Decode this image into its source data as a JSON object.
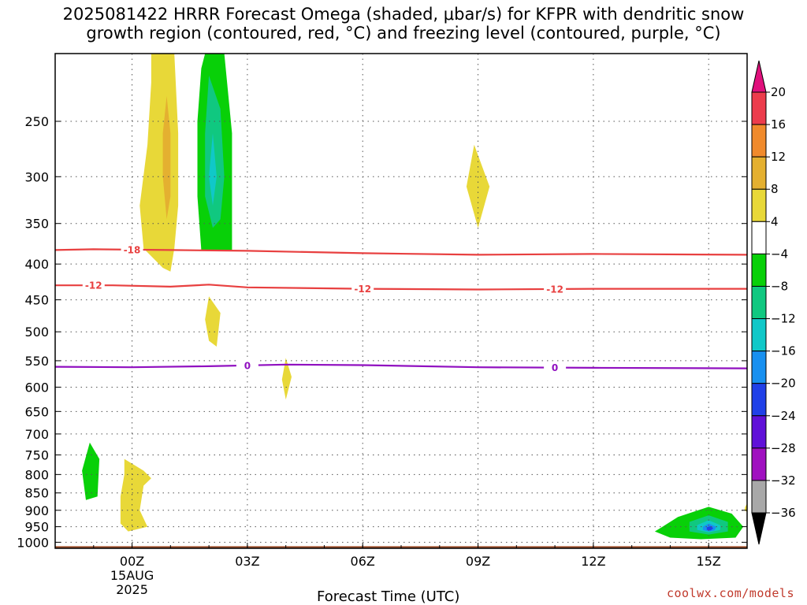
{
  "title_line1": "2025081422 HRRR Forecast Omega (shaded, μbar/s) for KFPR with dendritic snow",
  "title_line2": "growth region (contoured, red, °C) and freezing level (contoured, purple, °C)",
  "xlabel": "Forecast Time (UTC)",
  "credit": "coolwx.com/models",
  "chart_data": {
    "type": "heatmap",
    "title": "2025081422 HRRR Forecast Omega (shaded, μbar/s) for KFPR with dendritic snow growth region (contoured, red, °C) and freezing level (contoured, purple, °C)",
    "xlabel": "Forecast Time (UTC)",
    "ylabel": "",
    "xlim_hours": [
      -2,
      16
    ],
    "ylim_hpa": [
      1020,
      200
    ],
    "y_scale": "log",
    "grid": true,
    "x_ticks": [
      {
        "hour": 0,
        "label": "00Z",
        "sub1": "15AUG",
        "sub2": "2025"
      },
      {
        "hour": 3,
        "label": "03Z"
      },
      {
        "hour": 6,
        "label": "06Z"
      },
      {
        "hour": 9,
        "label": "09Z"
      },
      {
        "hour": 12,
        "label": "12Z"
      },
      {
        "hour": 15,
        "label": "15Z"
      }
    ],
    "y_ticks": [
      250,
      300,
      350,
      400,
      450,
      500,
      550,
      600,
      650,
      700,
      750,
      800,
      850,
      900,
      950,
      1000
    ],
    "colorbar": {
      "labels": [
        "20",
        "16",
        "12",
        "8",
        "4",
        "−4",
        "−8",
        "−12",
        "−16",
        "−20",
        "−24",
        "−28",
        "−32",
        "−36"
      ],
      "bins": [
        {
          "from": 20,
          "to": 16,
          "color": "#ec3c4c"
        },
        {
          "from": 16,
          "to": 12,
          "color": "#f08a2c"
        },
        {
          "from": 12,
          "to": 8,
          "color": "#e4b030"
        },
        {
          "from": 8,
          "to": 4,
          "color": "#e8d838"
        },
        {
          "from": 4,
          "to": -4,
          "color": "#ffffff"
        },
        {
          "from": -4,
          "to": -8,
          "color": "#08d008"
        },
        {
          "from": -8,
          "to": -12,
          "color": "#10c880"
        },
        {
          "from": -12,
          "to": -16,
          "color": "#10c8c8"
        },
        {
          "from": -16,
          "to": -20,
          "color": "#1890f0"
        },
        {
          "from": -20,
          "to": -24,
          "color": "#2040e8"
        },
        {
          "from": -24,
          "to": -28,
          "color": "#6010d8"
        },
        {
          "from": -28,
          "to": -32,
          "color": "#a010c0"
        },
        {
          "from": -32,
          "to": -36,
          "color": "#a8a8a8"
        }
      ],
      "above_color": "#e0107c",
      "below_color": "#000000"
    },
    "contours": [
      {
        "name": "-18 °C",
        "label": "-18",
        "color": "#e84040",
        "points": [
          [
            -2,
            382
          ],
          [
            -1,
            381
          ],
          [
            1,
            382
          ],
          [
            3,
            383
          ],
          [
            6,
            386
          ],
          [
            9,
            388
          ],
          [
            12,
            387
          ],
          [
            16,
            388
          ]
        ],
        "label_hours": [
          0
        ]
      },
      {
        "name": "-12 °C",
        "label": "-12",
        "color": "#e84040",
        "points": [
          [
            -2,
            429
          ],
          [
            -0.5,
            429
          ],
          [
            1,
            431
          ],
          [
            2,
            428
          ],
          [
            3,
            432
          ],
          [
            6,
            434
          ],
          [
            9,
            435
          ],
          [
            12,
            434
          ],
          [
            16,
            434
          ]
        ],
        "label_hours": [
          -1,
          6,
          11
        ]
      },
      {
        "name": "0 °C freezing level",
        "label": "0",
        "color": "#9010c0",
        "points": [
          [
            -2,
            561
          ],
          [
            0,
            562
          ],
          [
            2,
            560
          ],
          [
            4,
            557
          ],
          [
            6,
            558
          ],
          [
            9,
            562
          ],
          [
            12,
            563
          ],
          [
            16,
            564
          ]
        ],
        "label_hours": [
          3,
          11
        ]
      }
    ],
    "shaded_regions": [
      {
        "value_band": "4 to 8",
        "color": "#e8d838",
        "points": [
          [
            0.5,
            200
          ],
          [
            1.1,
            200
          ],
          [
            1.2,
            260
          ],
          [
            1.2,
            330
          ],
          [
            1.1,
            380
          ],
          [
            1.0,
            410
          ],
          [
            0.8,
            405
          ],
          [
            0.3,
            380
          ],
          [
            0.2,
            330
          ],
          [
            0.4,
            270
          ],
          [
            0.5,
            220
          ]
        ]
      },
      {
        "value_band": "8 to 12",
        "color": "#e4b030",
        "points": [
          [
            0.9,
            230
          ],
          [
            1.0,
            260
          ],
          [
            1.0,
            320
          ],
          [
            0.9,
            345
          ],
          [
            0.8,
            300
          ],
          [
            0.8,
            260
          ]
        ]
      },
      {
        "value_band": "-4 to -8",
        "color": "#08d008",
        "points": [
          [
            1.9,
            200
          ],
          [
            2.4,
            200
          ],
          [
            2.6,
            260
          ],
          [
            2.6,
            350
          ],
          [
            2.6,
            382
          ],
          [
            1.8,
            382
          ],
          [
            1.7,
            320
          ],
          [
            1.7,
            250
          ],
          [
            1.8,
            210
          ]
        ]
      },
      {
        "value_band": "-8 to -12",
        "color": "#10c880",
        "points": [
          [
            2.0,
            215
          ],
          [
            2.3,
            240
          ],
          [
            2.4,
            300
          ],
          [
            2.3,
            345
          ],
          [
            2.1,
            355
          ],
          [
            1.9,
            320
          ],
          [
            1.9,
            260
          ]
        ]
      },
      {
        "value_band": "-12 to -16",
        "color": "#10c8c8",
        "points": [
          [
            2.1,
            260
          ],
          [
            2.2,
            300
          ],
          [
            2.1,
            330
          ],
          [
            2.0,
            300
          ]
        ]
      },
      {
        "value_band": "4 to 8",
        "color": "#e8d838",
        "points": [
          [
            8.9,
            270
          ],
          [
            9.3,
            310
          ],
          [
            9.0,
            355
          ],
          [
            8.7,
            310
          ]
        ]
      },
      {
        "value_band": "4 to 8",
        "color": "#e8d838",
        "points": [
          [
            2.0,
            445
          ],
          [
            2.3,
            470
          ],
          [
            2.2,
            525
          ],
          [
            2.0,
            515
          ],
          [
            1.9,
            480
          ]
        ]
      },
      {
        "value_band": "4 to 8",
        "color": "#e8d838",
        "points": [
          [
            4.0,
            545
          ],
          [
            4.15,
            580
          ],
          [
            4.0,
            625
          ],
          [
            3.9,
            585
          ]
        ]
      },
      {
        "value_band": "-4 to -8",
        "color": "#08d008",
        "points": [
          [
            -1.1,
            720
          ],
          [
            -0.85,
            760
          ],
          [
            -0.9,
            860
          ],
          [
            -1.2,
            870
          ],
          [
            -1.3,
            790
          ]
        ]
      },
      {
        "value_band": "4 to 8",
        "color": "#e8d838",
        "points": [
          [
            -0.2,
            760
          ],
          [
            0.3,
            790
          ],
          [
            0.5,
            810
          ],
          [
            0.3,
            830
          ],
          [
            0.2,
            900
          ],
          [
            0.4,
            950
          ],
          [
            -0.1,
            965
          ],
          [
            -0.3,
            940
          ],
          [
            -0.3,
            860
          ],
          [
            -0.2,
            800
          ]
        ]
      },
      {
        "value_band": "-4 to -8",
        "color": "#08d008",
        "points": [
          [
            13.8,
            950
          ],
          [
            14.2,
            920
          ],
          [
            15.0,
            890
          ],
          [
            15.6,
            910
          ],
          [
            15.9,
            950
          ],
          [
            15.7,
            985
          ],
          [
            14.8,
            990
          ],
          [
            14.0,
            985
          ],
          [
            13.6,
            965
          ]
        ]
      },
      {
        "value_band": "-8 to -12",
        "color": "#10c880",
        "points": [
          [
            14.5,
            935
          ],
          [
            15.0,
            915
          ],
          [
            15.5,
            935
          ],
          [
            15.5,
            965
          ],
          [
            15.0,
            975
          ],
          [
            14.5,
            965
          ]
        ]
      },
      {
        "value_band": "-12 to -16",
        "color": "#10c8c8",
        "points": [
          [
            14.7,
            945
          ],
          [
            15.0,
            930
          ],
          [
            15.3,
            945
          ],
          [
            15.3,
            960
          ],
          [
            15.0,
            968
          ],
          [
            14.7,
            960
          ]
        ]
      },
      {
        "value_band": "-16 to -20",
        "color": "#1890f0",
        "points": [
          [
            14.85,
            950
          ],
          [
            15.0,
            940
          ],
          [
            15.2,
            950
          ],
          [
            15.15,
            962
          ],
          [
            15.0,
            965
          ],
          [
            14.85,
            960
          ]
        ]
      },
      {
        "value_band": "-20 to -24",
        "color": "#2040e8",
        "points": [
          [
            14.95,
            952
          ],
          [
            15.05,
            948
          ],
          [
            15.12,
            955
          ],
          [
            15.05,
            962
          ],
          [
            14.95,
            960
          ]
        ]
      },
      {
        "value_band": "4 to 8",
        "color": "#e8d838",
        "points": [
          [
            15.95,
            890
          ],
          [
            16.0,
            880
          ],
          [
            16.0,
            905
          ],
          [
            15.93,
            900
          ]
        ]
      }
    ],
    "terrain": {
      "pressure_hpa": 1013,
      "color": "#a0522d"
    }
  }
}
